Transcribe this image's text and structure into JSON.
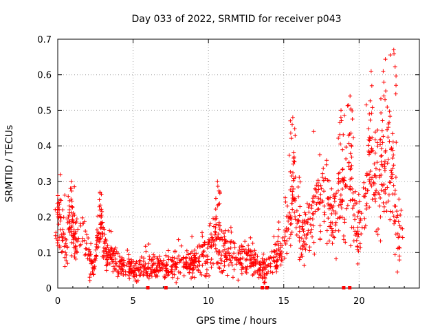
{
  "chart_data": {
    "type": "scatter",
    "title": "Day 033 of 2022, SRMTID for receiver p043",
    "xlabel": "GPS time / hours",
    "ylabel": "SRMTID / TECUs",
    "xlim": [
      0,
      24
    ],
    "ylim": [
      0,
      0.7
    ],
    "xticks": [
      0,
      5,
      10,
      15,
      20
    ],
    "yticks": [
      0,
      0.1,
      0.2,
      0.3,
      0.4,
      0.5,
      0.6,
      0.7
    ],
    "ytick_labels": [
      "0",
      "0.1",
      "0.2",
      "0.3",
      "0.4",
      "0.5",
      "0.6",
      "0.7"
    ],
    "grid": true,
    "marker": "+",
    "color": "#ff0000",
    "series": [
      {
        "name": "SRMTID",
        "envelope": [
          {
            "x": 0.0,
            "y": 0.16,
            "spread": 0.06
          },
          {
            "x": 0.2,
            "y": 0.2,
            "spread": 0.06
          },
          {
            "x": 0.5,
            "y": 0.11,
            "spread": 0.05
          },
          {
            "x": 0.9,
            "y": 0.18,
            "spread": 0.08
          },
          {
            "x": 1.3,
            "y": 0.12,
            "spread": 0.05
          },
          {
            "x": 1.7,
            "y": 0.16,
            "spread": 0.05
          },
          {
            "x": 2.1,
            "y": 0.08,
            "spread": 0.04
          },
          {
            "x": 2.4,
            "y": 0.05,
            "spread": 0.02
          },
          {
            "x": 2.8,
            "y": 0.18,
            "spread": 0.07
          },
          {
            "x": 3.2,
            "y": 0.1,
            "spread": 0.04
          },
          {
            "x": 4.0,
            "y": 0.07,
            "spread": 0.03
          },
          {
            "x": 5.0,
            "y": 0.05,
            "spread": 0.025
          },
          {
            "x": 6.0,
            "y": 0.055,
            "spread": 0.025
          },
          {
            "x": 7.0,
            "y": 0.06,
            "spread": 0.025
          },
          {
            "x": 8.0,
            "y": 0.07,
            "spread": 0.03
          },
          {
            "x": 9.0,
            "y": 0.07,
            "spread": 0.03
          },
          {
            "x": 10.0,
            "y": 0.11,
            "spread": 0.05
          },
          {
            "x": 10.5,
            "y": 0.14,
            "spread": 0.06
          },
          {
            "x": 11.0,
            "y": 0.1,
            "spread": 0.05
          },
          {
            "x": 12.0,
            "y": 0.09,
            "spread": 0.04
          },
          {
            "x": 13.0,
            "y": 0.07,
            "spread": 0.03
          },
          {
            "x": 13.8,
            "y": 0.05,
            "spread": 0.025
          },
          {
            "x": 14.5,
            "y": 0.09,
            "spread": 0.04
          },
          {
            "x": 15.0,
            "y": 0.12,
            "spread": 0.05
          },
          {
            "x": 15.6,
            "y": 0.28,
            "spread": 0.1
          },
          {
            "x": 16.2,
            "y": 0.14,
            "spread": 0.07
          },
          {
            "x": 17.0,
            "y": 0.2,
            "spread": 0.08
          },
          {
            "x": 17.6,
            "y": 0.27,
            "spread": 0.09
          },
          {
            "x": 18.2,
            "y": 0.18,
            "spread": 0.08
          },
          {
            "x": 18.8,
            "y": 0.25,
            "spread": 0.1
          },
          {
            "x": 19.4,
            "y": 0.28,
            "spread": 0.12
          },
          {
            "x": 20.0,
            "y": 0.17,
            "spread": 0.08
          },
          {
            "x": 20.6,
            "y": 0.35,
            "spread": 0.13
          },
          {
            "x": 21.2,
            "y": 0.3,
            "spread": 0.12
          },
          {
            "x": 22.0,
            "y": 0.35,
            "spread": 0.15
          },
          {
            "x": 22.5,
            "y": 0.15,
            "spread": 0.07
          },
          {
            "x": 22.9,
            "y": 0.12,
            "spread": 0.06
          }
        ],
        "peaks": [
          {
            "x": 0.0,
            "y": 0.26
          },
          {
            "x": 0.9,
            "y": 0.3
          },
          {
            "x": 2.8,
            "y": 0.27
          },
          {
            "x": 10.6,
            "y": 0.3
          },
          {
            "x": 15.6,
            "y": 0.48
          },
          {
            "x": 18.8,
            "y": 0.5
          },
          {
            "x": 19.4,
            "y": 0.54
          },
          {
            "x": 20.8,
            "y": 0.61
          },
          {
            "x": 21.6,
            "y": 0.61
          },
          {
            "x": 22.3,
            "y": 0.67
          }
        ]
      }
    ],
    "data_gaps_x": [
      6.0,
      7.2,
      13.6,
      13.9,
      19.0,
      19.4
    ]
  }
}
